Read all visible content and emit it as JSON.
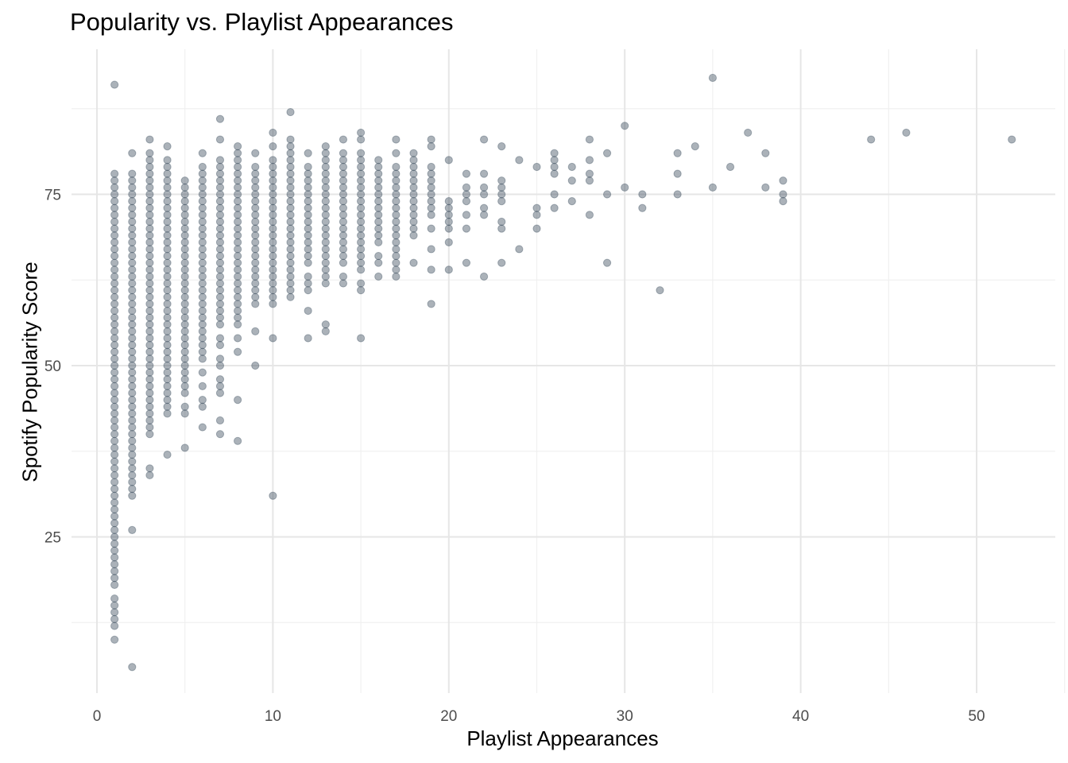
{
  "chart_data": {
    "type": "scatter",
    "title": "Popularity vs. Playlist Appearances",
    "xlabel": "Playlist Appearances",
    "ylabel": "Spotify Popularity Score",
    "xlim": [
      -1.5,
      54.5
    ],
    "ylim": [
      3,
      97
    ],
    "x_ticks": [
      0,
      10,
      20,
      30,
      40,
      50
    ],
    "y_ticks": [
      25,
      50,
      75
    ],
    "grid": true,
    "point_color": "#2c3e50",
    "point_alpha": 0.4,
    "columns": [
      {
        "x": 1,
        "y": [
          10,
          12,
          13,
          14,
          15,
          16,
          18,
          19,
          20,
          21,
          22,
          23,
          24,
          25,
          26,
          27,
          28,
          29,
          30,
          31,
          32,
          33,
          34,
          35,
          36,
          37,
          38,
          39,
          40,
          41,
          42,
          43,
          44,
          45,
          46,
          47,
          48,
          49,
          50,
          51,
          52,
          53,
          54,
          55,
          56,
          57,
          58,
          59,
          60,
          61,
          62,
          63,
          64,
          65,
          66,
          67,
          68,
          69,
          70,
          71,
          72,
          73,
          74,
          75,
          76,
          77,
          78,
          91
        ]
      },
      {
        "x": 2,
        "y": [
          6,
          26,
          31,
          32,
          33,
          34,
          35,
          36,
          37,
          38,
          39,
          40,
          41,
          42,
          43,
          44,
          45,
          46,
          47,
          48,
          49,
          50,
          51,
          52,
          53,
          54,
          55,
          56,
          57,
          58,
          59,
          60,
          61,
          62,
          63,
          64,
          65,
          66,
          67,
          68,
          69,
          70,
          71,
          72,
          73,
          74,
          75,
          76,
          77,
          78,
          81
        ]
      },
      {
        "x": 3,
        "y": [
          34,
          35,
          40,
          41,
          42,
          43,
          44,
          45,
          46,
          47,
          48,
          49,
          50,
          51,
          52,
          53,
          54,
          55,
          56,
          57,
          58,
          59,
          60,
          61,
          62,
          63,
          64,
          65,
          66,
          67,
          68,
          69,
          70,
          71,
          72,
          73,
          74,
          75,
          76,
          77,
          78,
          79,
          80,
          81,
          83
        ]
      },
      {
        "x": 4,
        "y": [
          37,
          43,
          44,
          45,
          46,
          47,
          48,
          49,
          50,
          51,
          52,
          53,
          54,
          55,
          56,
          57,
          58,
          59,
          60,
          61,
          62,
          63,
          64,
          65,
          66,
          67,
          68,
          69,
          70,
          71,
          72,
          73,
          74,
          75,
          76,
          77,
          78,
          79,
          80,
          82
        ]
      },
      {
        "x": 5,
        "y": [
          38,
          43,
          44,
          46,
          47,
          48,
          49,
          50,
          51,
          52,
          53,
          54,
          55,
          56,
          57,
          58,
          59,
          60,
          61,
          62,
          63,
          64,
          65,
          66,
          67,
          68,
          69,
          70,
          71,
          72,
          73,
          74,
          75,
          76,
          77
        ]
      },
      {
        "x": 6,
        "y": [
          41,
          44,
          45,
          47,
          49,
          51,
          52,
          53,
          54,
          55,
          56,
          57,
          58,
          59,
          60,
          61,
          62,
          63,
          64,
          65,
          66,
          67,
          68,
          69,
          70,
          71,
          72,
          73,
          74,
          75,
          76,
          77,
          78,
          79,
          81
        ]
      },
      {
        "x": 7,
        "y": [
          40,
          42,
          46,
          47,
          48,
          50,
          51,
          53,
          54,
          56,
          57,
          58,
          59,
          60,
          61,
          62,
          63,
          64,
          65,
          66,
          67,
          68,
          69,
          70,
          71,
          72,
          73,
          74,
          75,
          76,
          77,
          78,
          79,
          80,
          83,
          86
        ]
      },
      {
        "x": 8,
        "y": [
          39,
          45,
          52,
          54,
          56,
          57,
          58,
          59,
          60,
          61,
          62,
          63,
          64,
          65,
          66,
          67,
          68,
          69,
          70,
          71,
          72,
          73,
          74,
          75,
          76,
          77,
          78,
          79,
          80,
          81,
          82
        ]
      },
      {
        "x": 9,
        "y": [
          50,
          55,
          59,
          60,
          61,
          62,
          63,
          64,
          65,
          66,
          67,
          68,
          69,
          70,
          71,
          72,
          73,
          74,
          75,
          76,
          77,
          78,
          79,
          81
        ]
      },
      {
        "x": 10,
        "y": [
          31,
          54,
          59,
          60,
          61,
          62,
          63,
          64,
          65,
          66,
          67,
          68,
          69,
          70,
          71,
          72,
          73,
          74,
          75,
          76,
          77,
          78,
          79,
          80,
          82,
          84
        ]
      },
      {
        "x": 11,
        "y": [
          60,
          61,
          62,
          63,
          64,
          65,
          66,
          67,
          68,
          69,
          70,
          71,
          72,
          73,
          74,
          75,
          76,
          77,
          78,
          79,
          80,
          81,
          82,
          83,
          87
        ]
      },
      {
        "x": 12,
        "y": [
          54,
          58,
          61,
          62,
          63,
          65,
          66,
          67,
          68,
          69,
          70,
          71,
          72,
          73,
          74,
          75,
          76,
          77,
          78,
          79,
          81
        ]
      },
      {
        "x": 13,
        "y": [
          55,
          56,
          62,
          63,
          64,
          65,
          66,
          67,
          68,
          69,
          70,
          71,
          72,
          73,
          74,
          75,
          76,
          77,
          78,
          79,
          80,
          81,
          82
        ]
      },
      {
        "x": 14,
        "y": [
          62,
          63,
          65,
          66,
          67,
          68,
          69,
          70,
          71,
          72,
          73,
          74,
          75,
          76,
          77,
          78,
          79,
          80,
          81,
          83
        ]
      },
      {
        "x": 15,
        "y": [
          54,
          61,
          62,
          64,
          65,
          66,
          67,
          68,
          69,
          70,
          71,
          72,
          73,
          74,
          75,
          76,
          77,
          78,
          79,
          80,
          81,
          83,
          84
        ]
      },
      {
        "x": 16,
        "y": [
          63,
          65,
          66,
          68,
          69,
          70,
          71,
          72,
          73,
          74,
          75,
          76,
          77,
          78,
          79,
          80
        ]
      },
      {
        "x": 17,
        "y": [
          63,
          64,
          65,
          66,
          67,
          68,
          69,
          70,
          71,
          72,
          73,
          74,
          75,
          76,
          77,
          78,
          79,
          81,
          83
        ]
      },
      {
        "x": 18,
        "y": [
          65,
          69,
          70,
          71,
          72,
          73,
          74,
          75,
          76,
          77,
          78,
          79,
          80,
          81
        ]
      },
      {
        "x": 19,
        "y": [
          59,
          64,
          67,
          70,
          72,
          73,
          74,
          75,
          76,
          77,
          78,
          79,
          82,
          83
        ]
      },
      {
        "x": 20,
        "y": [
          64,
          68,
          70,
          71,
          72,
          73,
          74,
          80
        ]
      },
      {
        "x": 21,
        "y": [
          65,
          70,
          72,
          74,
          75,
          76,
          78
        ]
      },
      {
        "x": 22,
        "y": [
          63,
          72,
          73,
          75,
          76,
          78,
          83
        ]
      },
      {
        "x": 23,
        "y": [
          65,
          70,
          71,
          74,
          75,
          76,
          77,
          82
        ]
      },
      {
        "x": 24,
        "y": [
          67,
          80
        ]
      },
      {
        "x": 25,
        "y": [
          70,
          72,
          73,
          79
        ]
      },
      {
        "x": 26,
        "y": [
          73,
          75,
          78,
          79,
          80,
          81
        ]
      },
      {
        "x": 27,
        "y": [
          74,
          77,
          79
        ]
      },
      {
        "x": 28,
        "y": [
          72,
          77,
          78,
          80,
          83
        ]
      },
      {
        "x": 29,
        "y": [
          65,
          75,
          81
        ]
      },
      {
        "x": 30,
        "y": [
          76,
          85
        ]
      },
      {
        "x": 31,
        "y": [
          73,
          75
        ]
      },
      {
        "x": 32,
        "y": [
          61
        ]
      },
      {
        "x": 33,
        "y": [
          75,
          78,
          81
        ]
      },
      {
        "x": 34,
        "y": [
          82
        ]
      },
      {
        "x": 35,
        "y": [
          76,
          92
        ]
      },
      {
        "x": 36,
        "y": [
          79
        ]
      },
      {
        "x": 37,
        "y": [
          84
        ]
      },
      {
        "x": 38,
        "y": [
          76,
          81
        ]
      },
      {
        "x": 39,
        "y": [
          74,
          75,
          77
        ]
      },
      {
        "x": 44,
        "y": [
          83
        ]
      },
      {
        "x": 46,
        "y": [
          84
        ]
      },
      {
        "x": 52,
        "y": [
          83
        ]
      }
    ]
  }
}
